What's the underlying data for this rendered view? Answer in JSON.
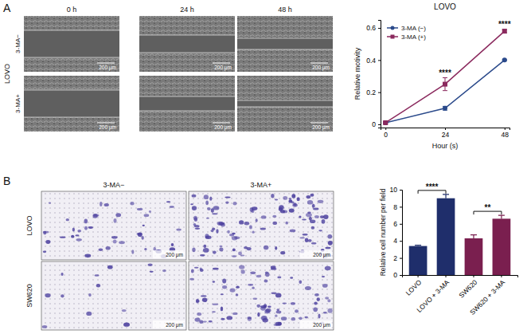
{
  "figure": {
    "panels": [
      {
        "label": "A",
        "row_group": "LOVO",
        "columns": [
          "0 h",
          "24 h",
          "48 h"
        ],
        "rows": [
          "3-MA−",
          "3-MA+"
        ],
        "scale_bar": "200 μm"
      },
      {
        "label": "B",
        "columns": [
          "3-MA−",
          "3-MA+"
        ],
        "rows": [
          "LOVO",
          "SW620"
        ],
        "scale_bar": "200 μm"
      }
    ]
  },
  "chart_data": [
    {
      "type": "line",
      "title": "LOVO",
      "x_label": "Hour (s)",
      "y_label": "Relative motivity",
      "x": [
        0,
        24,
        48
      ],
      "xlim": [
        -2,
        50
      ],
      "xticks": [
        0,
        24,
        48
      ],
      "ylim": [
        -0.02,
        0.65
      ],
      "yticks": [
        0,
        0.2,
        0.4,
        0.6
      ],
      "legend": "upper left",
      "series": [
        {
          "name": "3-MA (−)",
          "color": "#2b4a8b",
          "marker": "circle",
          "values": [
            0.01,
            0.1,
            0.4
          ],
          "errors": [
            0.005,
            0.012,
            0.005
          ]
        },
        {
          "name": "3-MA (+)",
          "color": "#8b2a5e",
          "marker": "square",
          "values": [
            0.01,
            0.25,
            0.58
          ],
          "errors": [
            0.005,
            0.04,
            0.01
          ]
        }
      ],
      "annotations": [
        {
          "text": "****",
          "x": 24
        },
        {
          "text": "****",
          "x": 48
        }
      ]
    },
    {
      "type": "bar",
      "y_label": "Relative cell number per field",
      "categories": [
        "LOVO",
        "LOVO + 3-MA",
        "SW620",
        "SW620 + 3-MA"
      ],
      "values": [
        3.4,
        9,
        4.3,
        6.6
      ],
      "errors": [
        0.1,
        0.45,
        0.4,
        0.4
      ],
      "colors": [
        "#1f2e6b",
        "#1f2e6b",
        "#7a1f4f",
        "#7a1f4f"
      ],
      "ylim": [
        0,
        10
      ],
      "yticks": [
        0,
        2,
        4,
        6,
        8,
        10
      ],
      "annotations": [
        {
          "text": "****",
          "between": [
            "LOVO",
            "LOVO + 3-MA"
          ]
        },
        {
          "text": "**",
          "between": [
            "SW620",
            "SW620 + 3-MA"
          ]
        }
      ]
    }
  ]
}
